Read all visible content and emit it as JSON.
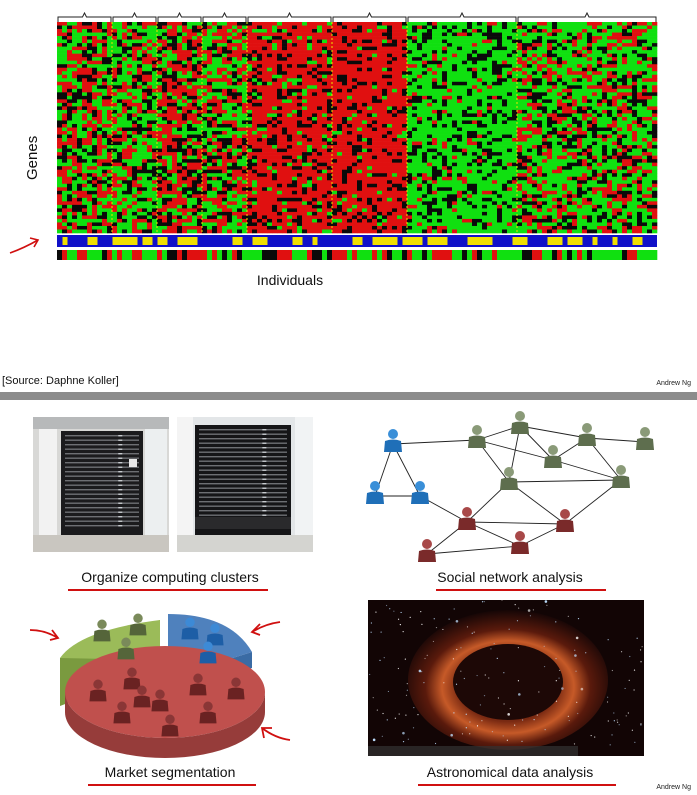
{
  "slide1": {
    "y_label": "Genes",
    "x_label": "Individuals",
    "source": "[Source: Daphne Koller]",
    "author": "Andrew Ng",
    "colors": {
      "red": "#e01010",
      "green": "#10e010",
      "black": "#0a0a0a",
      "blue": "#1010c8",
      "yellow": "#f0e000"
    }
  },
  "slide2": {
    "captions": {
      "clusters": "Organize computing clusters",
      "social": "Social network analysis",
      "market": "Market segmentation",
      "astro": "Astronomical data analysis"
    },
    "author": "Andrew Ng",
    "colors": {
      "annotation": "#d01010",
      "pie_red": "#c0504d",
      "pie_green": "#9bbb59",
      "pie_blue": "#4f81bd"
    }
  }
}
